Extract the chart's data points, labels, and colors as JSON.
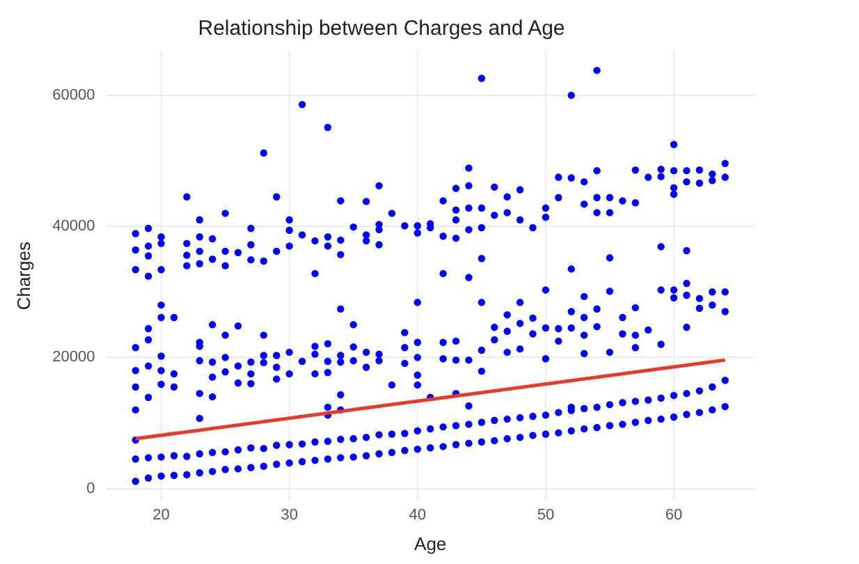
{
  "chart_data": {
    "type": "scatter",
    "title": "Relationship between Charges and Age",
    "xlabel": "Age",
    "ylabel": "Charges",
    "xlim": [
      15.7,
      66.3
    ],
    "xticks": [
      20,
      30,
      40,
      50,
      60
    ],
    "ylim": [
      -2000,
      66900
    ],
    "yticks": [
      0,
      20000,
      40000,
      60000
    ],
    "grid": true,
    "legend": false,
    "series": [
      {
        "color": "#0000ff",
        "marker": "circle",
        "x": [
          18,
          18,
          18,
          18,
          18,
          18,
          18,
          18,
          18,
          18,
          19,
          19,
          19,
          19,
          19,
          19,
          19,
          19,
          19,
          19,
          20,
          20,
          20,
          20,
          20,
          20,
          20,
          20,
          20,
          20,
          21,
          21,
          21,
          21,
          21,
          22,
          22,
          22,
          22,
          22,
          22,
          23,
          23,
          23,
          23,
          23,
          23,
          23,
          23,
          23,
          23,
          23,
          24,
          24,
          24,
          24,
          24,
          24,
          24,
          24,
          25,
          25,
          25,
          25,
          25,
          25,
          25,
          25,
          26,
          26,
          26,
          26,
          26,
          26,
          27,
          27,
          27,
          27,
          27,
          27,
          27,
          27,
          28,
          28,
          28,
          28,
          28,
          28,
          28,
          29,
          29,
          29,
          29,
          29,
          29,
          29,
          30,
          30,
          30,
          30,
          30,
          30,
          30,
          31,
          31,
          31,
          31,
          31,
          32,
          32,
          32,
          32,
          32,
          32,
          32,
          33,
          33,
          33,
          33,
          33,
          33,
          33,
          33,
          33,
          33,
          34,
          34,
          34,
          34,
          34,
          34,
          34,
          34,
          34,
          34,
          35,
          35,
          35,
          35,
          35,
          35,
          36,
          36,
          36,
          36,
          36,
          36,
          36,
          37,
          37,
          37,
          37,
          37,
          37,
          37,
          37,
          38,
          38,
          38,
          38,
          39,
          39,
          39,
          39,
          39,
          39,
          40,
          40,
          40,
          40,
          40,
          40,
          40,
          40,
          40,
          41,
          41,
          41,
          41,
          41,
          42,
          42,
          42,
          42,
          42,
          42,
          42,
          43,
          43,
          43,
          43,
          43,
          43,
          43,
          43,
          43,
          44,
          44,
          44,
          44,
          44,
          44,
          44,
          44,
          44,
          45,
          45,
          45,
          45,
          45,
          45,
          45,
          45,
          45,
          46,
          46,
          46,
          46,
          46,
          46,
          47,
          47,
          47,
          47,
          47,
          47,
          47,
          48,
          48,
          48,
          48,
          48,
          48,
          48,
          49,
          49,
          49,
          49,
          49,
          50,
          50,
          50,
          50,
          50,
          50,
          50,
          51,
          51,
          51,
          51,
          51,
          51,
          52,
          52,
          52,
          52,
          52,
          52,
          52,
          52,
          53,
          53,
          53,
          53,
          53,
          53,
          53,
          53,
          54,
          54,
          54,
          54,
          54,
          54,
          54,
          54,
          55,
          55,
          55,
          55,
          55,
          55,
          55,
          56,
          56,
          56,
          56,
          56,
          57,
          57,
          57,
          57,
          57,
          57,
          57,
          58,
          58,
          58,
          58,
          59,
          59,
          59,
          59,
          59,
          59,
          59,
          60,
          60,
          60,
          60,
          60,
          60,
          60,
          60,
          61,
          61,
          61,
          61,
          61,
          61,
          61,
          61,
          62,
          62,
          62,
          62,
          62,
          62,
          63,
          63,
          63,
          63,
          63,
          63,
          64,
          64,
          64,
          64,
          64,
          64
        ],
        "values": [
          1100,
          4500,
          7400,
          12000,
          15500,
          18000,
          21500,
          33400,
          36400,
          38900,
          1600,
          4700,
          13900,
          18700,
          22700,
          24400,
          32400,
          35500,
          37000,
          39700,
          1900,
          4800,
          15900,
          18000,
          20200,
          26100,
          28000,
          33400,
          37400,
          38400,
          2000,
          5000,
          15500,
          17500,
          26100,
          2100,
          4900,
          34000,
          35600,
          37400,
          44500,
          2400,
          5300,
          10700,
          14500,
          19500,
          21700,
          22300,
          34300,
          36200,
          38400,
          41000,
          2600,
          5500,
          14000,
          17000,
          19300,
          25000,
          35000,
          38100,
          2900,
          5600,
          17800,
          20000,
          23400,
          34000,
          36200,
          42000,
          3000,
          5900,
          16100,
          18700,
          24800,
          36000,
          3200,
          6200,
          16000,
          17500,
          19300,
          34900,
          37200,
          39700,
          3400,
          6100,
          19200,
          20300,
          23400,
          34700,
          51200,
          3700,
          6600,
          16700,
          18500,
          20300,
          36200,
          44500,
          3900,
          6700,
          17500,
          20800,
          37000,
          39400,
          41000,
          4100,
          6800,
          19400,
          38700,
          58600,
          4300,
          7100,
          17500,
          20500,
          21700,
          32800,
          37800,
          4500,
          7200,
          11200,
          12400,
          17700,
          19400,
          22100,
          37000,
          38400,
          55100,
          4700,
          7500,
          12000,
          14300,
          19300,
          20300,
          27400,
          35700,
          37900,
          43900,
          4800,
          7600,
          19500,
          21600,
          25000,
          39900,
          5000,
          7800,
          18500,
          20800,
          37800,
          38700,
          43800,
          5300,
          8200,
          19500,
          20500,
          37200,
          39500,
          40300,
          46200,
          5500,
          8300,
          15800,
          42000,
          5800,
          8400,
          19100,
          21500,
          23800,
          40100,
          6000,
          8800,
          15800,
          17300,
          20000,
          22300,
          28400,
          39000,
          40100,
          6200,
          9100,
          13900,
          39800,
          40400,
          6400,
          9400,
          19800,
          22300,
          32800,
          38500,
          43900,
          6700,
          9600,
          14500,
          19600,
          22500,
          38200,
          41000,
          42500,
          45800,
          6900,
          9800,
          12600,
          19600,
          32200,
          39500,
          42800,
          46200,
          48900,
          7100,
          10100,
          17900,
          21100,
          28400,
          35100,
          39800,
          42800,
          62600,
          7300,
          10400,
          22700,
          24600,
          41700,
          46000,
          7600,
          10600,
          20800,
          24000,
          26500,
          42100,
          44500,
          7800,
          10800,
          21300,
          25200,
          28400,
          41000,
          45600,
          8100,
          11000,
          23600,
          26000,
          39800,
          8300,
          11200,
          19800,
          24500,
          30300,
          41400,
          42800,
          8500,
          11600,
          22500,
          24400,
          44400,
          47500,
          8800,
          11900,
          12400,
          24500,
          27000,
          33500,
          47400,
          60000,
          9100,
          12200,
          20600,
          23400,
          26100,
          29300,
          43400,
          46800,
          9300,
          12400,
          24700,
          27400,
          42100,
          44400,
          48500,
          63800,
          9600,
          12800,
          20800,
          30100,
          35200,
          42100,
          44400,
          9800,
          13100,
          23600,
          26100,
          43900,
          10100,
          13300,
          21500,
          23400,
          27600,
          43600,
          48600,
          10400,
          13500,
          24200,
          47500,
          10600,
          13800,
          22000,
          30300,
          36900,
          47600,
          48700,
          10900,
          14200,
          29100,
          30300,
          44900,
          45900,
          48500,
          52500,
          11300,
          14500,
          24600,
          29500,
          31300,
          36300,
          46800,
          48500,
          11600,
          14900,
          27500,
          29000,
          46600,
          48600,
          12000,
          15500,
          28000,
          30000,
          47000,
          48000,
          12500,
          16500,
          27000,
          30000,
          47500,
          49600
        ]
      },
      {
        "type": "line",
        "color": "#e8392a",
        "x": [
          18,
          64
        ],
        "values": [
          7600,
          19600
        ]
      }
    ]
  }
}
